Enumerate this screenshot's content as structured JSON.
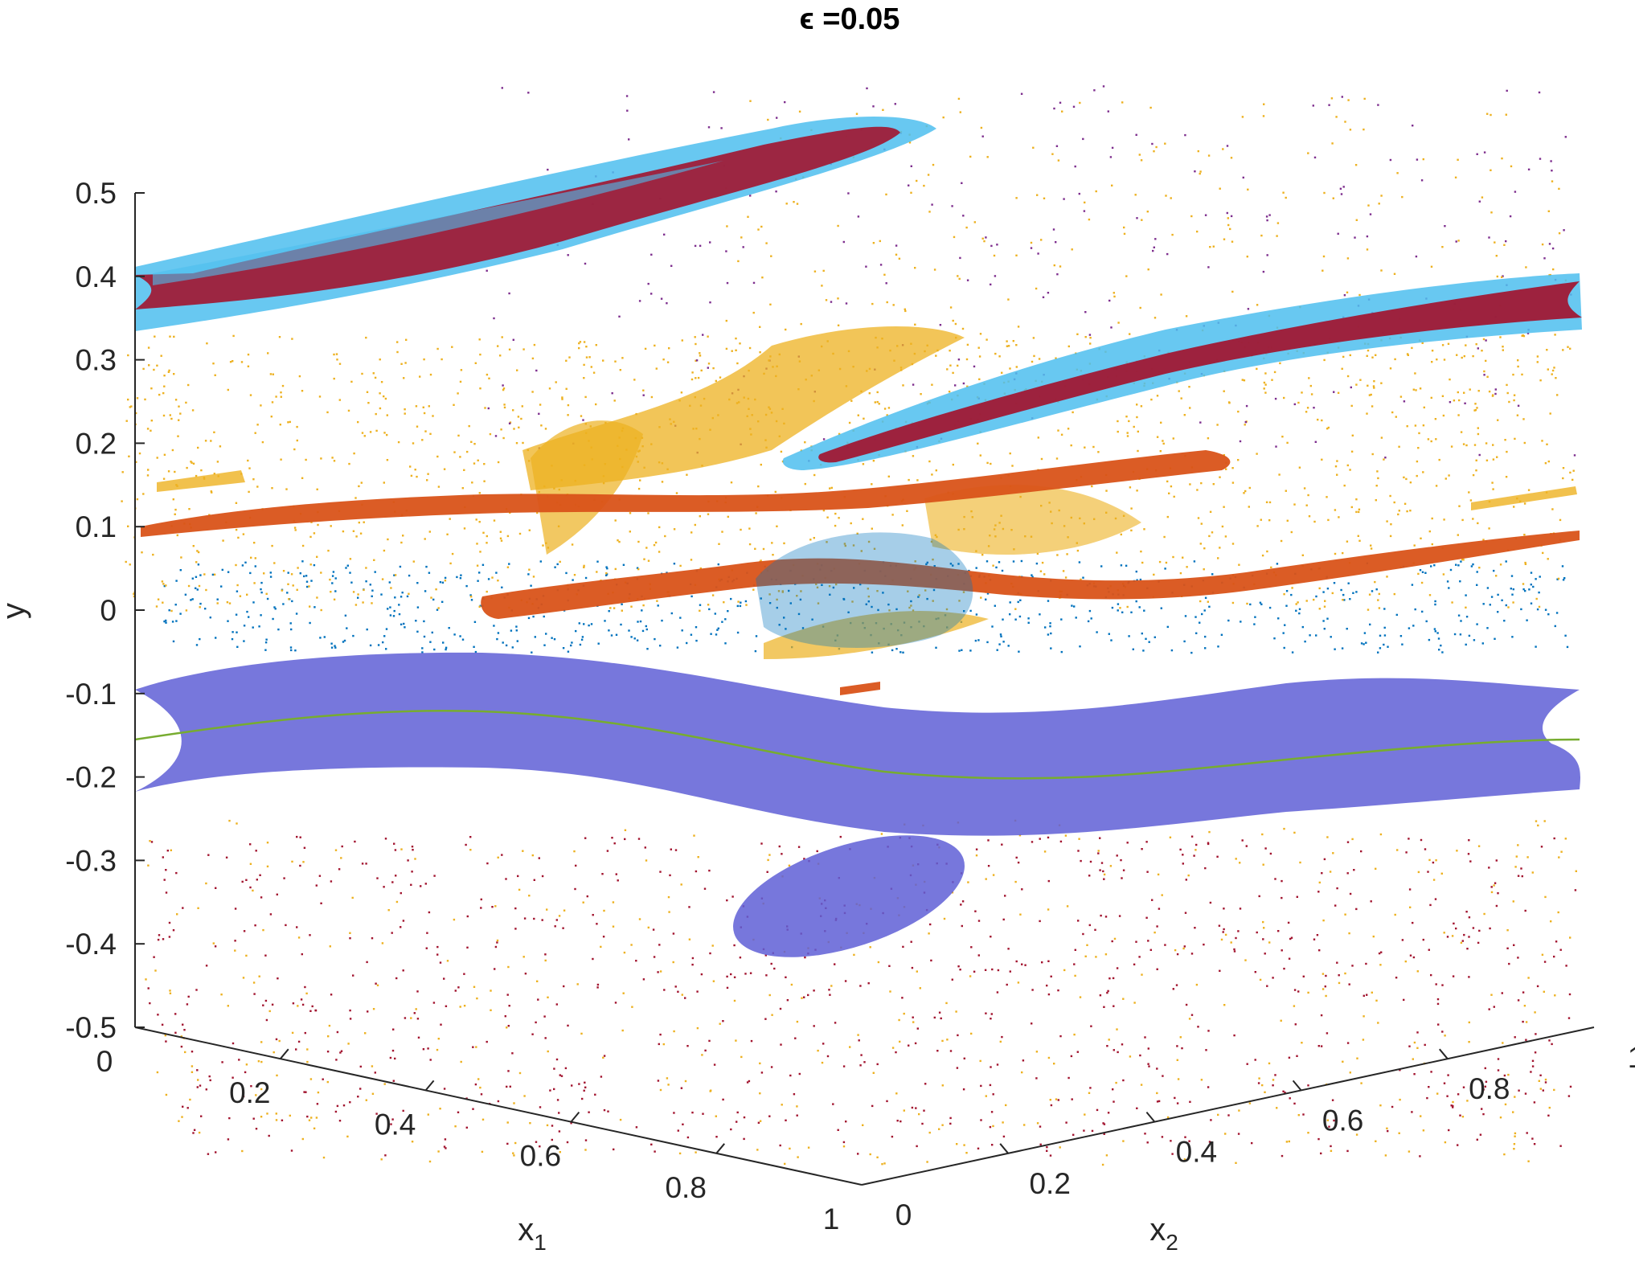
{
  "chart_data": {
    "type": "scatter",
    "title": "ϵ =0.05",
    "xlabel": "x",
    "xlabel_sub": "1",
    "zlabel": "x",
    "zlabel_sub": "2",
    "ylabel": "y",
    "projection": "3d",
    "xlim": [
      0,
      1
    ],
    "zlim": [
      0,
      1
    ],
    "ylim": [
      -0.5,
      0.5
    ],
    "x_ticks": [
      "0",
      "0.2",
      "0.4",
      "0.6",
      "0.8",
      "1"
    ],
    "z_ticks": [
      "0",
      "0.2",
      "0.4",
      "0.6",
      "0.8",
      "1"
    ],
    "y_ticks": [
      "0.5",
      "0.4",
      "0.3",
      "0.2",
      "0.1",
      "0",
      "-0.1",
      "-0.2",
      "-0.3",
      "-0.4",
      "-0.5"
    ],
    "grid": false,
    "colors": {
      "blue_dots": "#0072BD",
      "orange_band": "#D95319",
      "yellow_cloud": "#EDB120",
      "purple_surface": "#5F5FD6",
      "green_line": "#77AC30",
      "cyan_band": "#4DBEEE",
      "crimson_band": "#A2142F"
    },
    "series": [
      {
        "color": "#EDB120",
        "kind": "scattered cloud",
        "y_range": [
          0.0,
          0.35
        ]
      },
      {
        "color": "#D95319",
        "kind": "band",
        "y_range": [
          0.0,
          0.15
        ]
      },
      {
        "color": "#0072BD",
        "kind": "scattered cloud",
        "y_range": [
          -0.05,
          0.05
        ]
      },
      {
        "color": "#5F5FD6",
        "kind": "surface",
        "y_range": [
          -0.25,
          -0.1
        ]
      },
      {
        "color": "#77AC30",
        "kind": "line",
        "y_range": [
          -0.2,
          -0.15
        ]
      },
      {
        "color": "#A2142F",
        "kind": "band",
        "y_range": [
          0.35,
          0.4
        ]
      },
      {
        "color": "#4DBEEE",
        "kind": "band",
        "y_range": [
          0.3,
          0.45
        ]
      },
      {
        "color": "#A2142F",
        "kind": "scattered cloud",
        "y_range": [
          -0.5,
          -0.25
        ]
      }
    ]
  }
}
